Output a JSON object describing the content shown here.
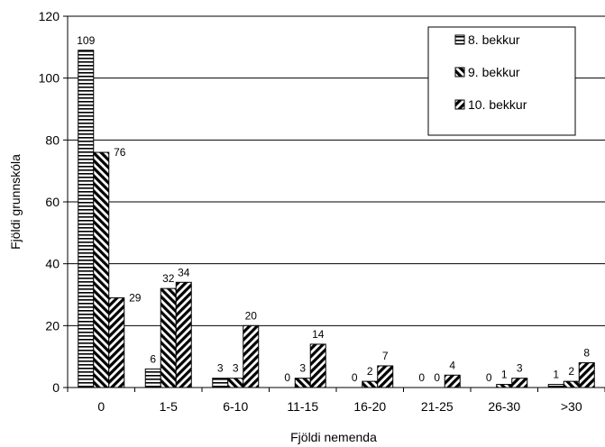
{
  "chart_data": {
    "type": "bar",
    "xlabel": "Fjöldi nemenda",
    "ylabel": "Fjöldi grunnskóla",
    "ylim": [
      0,
      120
    ],
    "yticks": [
      0,
      20,
      40,
      60,
      80,
      100,
      120
    ],
    "grid": true,
    "legend_position": "top-right",
    "categories": [
      "0",
      "1-5",
      "6-10",
      "11-15",
      "16-20",
      "21-25",
      "26-30",
      ">30"
    ],
    "series": [
      {
        "name": "8. bekkur",
        "pattern": "horizontal-stripes",
        "values": [
          109,
          6,
          3,
          0,
          0,
          0,
          0,
          1
        ]
      },
      {
        "name": "9. bekkur",
        "pattern": "diagonal-back-stripes",
        "values": [
          76,
          32,
          3,
          3,
          2,
          0,
          1,
          2
        ]
      },
      {
        "name": "10. bekkur",
        "pattern": "diagonal-forward-stripes",
        "values": [
          29,
          34,
          20,
          14,
          7,
          4,
          3,
          8
        ]
      }
    ],
    "colors": {
      "ink": "#000000",
      "background": "#ffffff",
      "grid": "#000000"
    }
  }
}
